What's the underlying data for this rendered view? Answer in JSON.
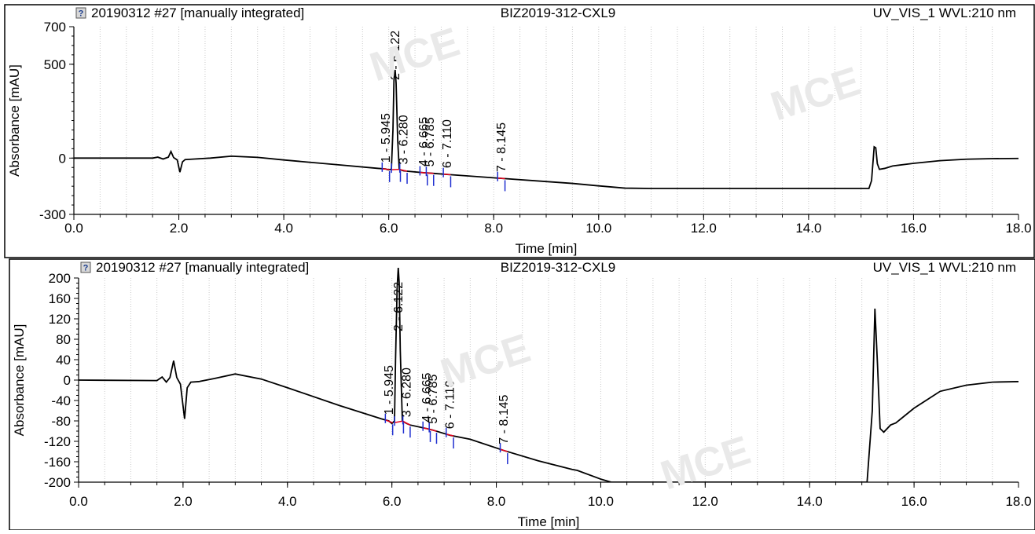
{
  "chart_data": [
    {
      "type": "line",
      "header": {
        "icon": "question-icon",
        "sample": "20190312 #27 [manually integrated]",
        "project": "BIZ2019-312-CXL9",
        "channel": "UV_VIS_1 WVL:210 nm"
      },
      "xlabel": "Time [min]",
      "ylabel": "Absorbance [mAU]",
      "xlim": [
        0,
        18
      ],
      "ylim": [
        -300,
        700
      ],
      "xticks": [
        0,
        2,
        4,
        6,
        8,
        10,
        12,
        14,
        16,
        18
      ],
      "xtick_labels": [
        "0.0",
        "2.0",
        "4.0",
        "6.0",
        "8.0",
        "10.0",
        "12.0",
        "14.0",
        "16.0",
        "18.0"
      ],
      "yticks": [
        -300,
        0,
        500,
        700
      ],
      "ytick_labels": [
        "-300",
        "0",
        "500",
        "700"
      ],
      "grid": true,
      "line_color": "#000000",
      "baseline_color": "#e8001c",
      "marker_color": "#1f2fd0",
      "peaks": [
        {
          "label": "1 - 5.945",
          "x": 5.945,
          "y": -70
        },
        {
          "label": "2 - 6.122",
          "x": 6.122,
          "y": 625
        },
        {
          "label": "3 - 6.280",
          "x": 6.28,
          "y": -82
        },
        {
          "label": "4 - 6.665",
          "x": 6.665,
          "y": -88
        },
        {
          "label": "5 - 6.785",
          "x": 6.785,
          "y": -92
        },
        {
          "label": "6 - 7.110",
          "x": 7.11,
          "y": -100
        },
        {
          "label": "7 - 8.145",
          "x": 8.145,
          "y": -125
        }
      ],
      "trace": [
        [
          0.0,
          0
        ],
        [
          1.5,
          0
        ],
        [
          1.6,
          5
        ],
        [
          1.7,
          -5
        ],
        [
          1.8,
          5
        ],
        [
          1.85,
          35
        ],
        [
          1.9,
          3
        ],
        [
          1.97,
          -10
        ],
        [
          2.02,
          -75
        ],
        [
          2.07,
          -20
        ],
        [
          2.12,
          -8
        ],
        [
          2.3,
          -5
        ],
        [
          2.6,
          0
        ],
        [
          3.0,
          10
        ],
        [
          3.5,
          4
        ],
        [
          4.0,
          -10
        ],
        [
          5.0,
          -35
        ],
        [
          5.8,
          -55
        ],
        [
          5.94,
          -58
        ],
        [
          5.98,
          -62
        ],
        [
          6.05,
          -60
        ],
        [
          6.08,
          150
        ],
        [
          6.1,
          420
        ],
        [
          6.122,
          470
        ],
        [
          6.14,
          400
        ],
        [
          6.17,
          100
        ],
        [
          6.2,
          -60
        ],
        [
          6.28,
          -68
        ],
        [
          6.35,
          -70
        ],
        [
          6.665,
          -78
        ],
        [
          6.785,
          -80
        ],
        [
          7.11,
          -87
        ],
        [
          7.5,
          -95
        ],
        [
          8.145,
          -108
        ],
        [
          9.0,
          -125
        ],
        [
          9.5,
          -135
        ],
        [
          10.0,
          -148
        ],
        [
          10.5,
          -160
        ],
        [
          11.0,
          -162
        ],
        [
          14.0,
          -162
        ],
        [
          15.15,
          -162
        ],
        [
          15.2,
          -120
        ],
        [
          15.25,
          60
        ],
        [
          15.28,
          55
        ],
        [
          15.31,
          -30
        ],
        [
          15.35,
          -60
        ],
        [
          15.45,
          -55
        ],
        [
          15.6,
          -42
        ],
        [
          16.0,
          -28
        ],
        [
          16.5,
          -14
        ],
        [
          17.0,
          -6
        ],
        [
          17.5,
          -3
        ],
        [
          18.0,
          -2
        ]
      ]
    },
    {
      "type": "line",
      "header": {
        "icon": "question-icon",
        "sample": "20190312 #27 [manually integrated]",
        "project": "BIZ2019-312-CXL9",
        "channel": "UV_VIS_1 WVL:210 nm"
      },
      "xlabel": "Time [min]",
      "ylabel": "Absorbance [mAU]",
      "xlim": [
        0,
        18
      ],
      "ylim": [
        -200,
        200
      ],
      "xticks": [
        0,
        2,
        4,
        6,
        8,
        10,
        12,
        14,
        16,
        18
      ],
      "xtick_labels": [
        "0.0",
        "2.0",
        "4.0",
        "6.0",
        "8.0",
        "10.0",
        "12.0",
        "14.0",
        "16.0",
        "18.0"
      ],
      "yticks": [
        -200,
        -160,
        -120,
        -80,
        -40,
        0,
        40,
        80,
        120,
        160,
        200
      ],
      "ytick_labels": [
        "-200",
        "-160",
        "-120",
        "-80",
        "-40",
        "0",
        "40",
        "80",
        "120",
        "160",
        "200"
      ],
      "grid": true,
      "line_color": "#000000",
      "baseline_color": "#e8001c",
      "marker_color": "#1f2fd0",
      "peaks": [
        {
          "label": "1 - 5.945",
          "x": 5.945,
          "y": -70
        },
        {
          "label": "2 - 6.122",
          "x": 6.122,
          "y": 200
        },
        {
          "label": "3 - 6.280",
          "x": 6.28,
          "y": -82
        },
        {
          "label": "4 - 6.665",
          "x": 6.665,
          "y": -88
        },
        {
          "label": "5 - 6.785",
          "x": 6.785,
          "y": -92
        },
        {
          "label": "6 - 7.110",
          "x": 7.11,
          "y": -100
        },
        {
          "label": "7 - 8.145",
          "x": 8.145,
          "y": -125
        }
      ],
      "trace": [
        [
          0.0,
          0
        ],
        [
          1.5,
          -1
        ],
        [
          1.6,
          6
        ],
        [
          1.68,
          -4
        ],
        [
          1.75,
          5
        ],
        [
          1.82,
          38
        ],
        [
          1.88,
          5
        ],
        [
          1.95,
          -8
        ],
        [
          2.03,
          -76
        ],
        [
          2.08,
          -15
        ],
        [
          2.15,
          -4
        ],
        [
          2.3,
          -3
        ],
        [
          2.6,
          3
        ],
        [
          3.0,
          12
        ],
        [
          3.5,
          2
        ],
        [
          4.0,
          -15
        ],
        [
          5.0,
          -50
        ],
        [
          5.8,
          -76
        ],
        [
          5.94,
          -80
        ],
        [
          6.0,
          -85
        ],
        [
          6.05,
          -80
        ],
        [
          6.07,
          40
        ],
        [
          6.1,
          180
        ],
        [
          6.122,
          220
        ],
        [
          6.14,
          190
        ],
        [
          6.16,
          60
        ],
        [
          6.2,
          -80
        ],
        [
          6.28,
          -85
        ],
        [
          6.35,
          -88
        ],
        [
          6.665,
          -95
        ],
        [
          6.785,
          -98
        ],
        [
          7.11,
          -108
        ],
        [
          7.5,
          -116
        ],
        [
          8.145,
          -138
        ],
        [
          8.8,
          -158
        ],
        [
          9.45,
          -175
        ],
        [
          9.55,
          -177
        ],
        [
          10.0,
          -194
        ],
        [
          10.2,
          -200
        ],
        [
          11.0,
          -200
        ],
        [
          15.1,
          -200
        ],
        [
          15.2,
          -60
        ],
        [
          15.25,
          140
        ],
        [
          15.3,
          30
        ],
        [
          15.35,
          -95
        ],
        [
          15.42,
          -102
        ],
        [
          15.55,
          -88
        ],
        [
          15.65,
          -84
        ],
        [
          16.0,
          -55
        ],
        [
          16.5,
          -22
        ],
        [
          17.0,
          -10
        ],
        [
          17.5,
          -4
        ],
        [
          18.0,
          -3
        ]
      ]
    }
  ]
}
